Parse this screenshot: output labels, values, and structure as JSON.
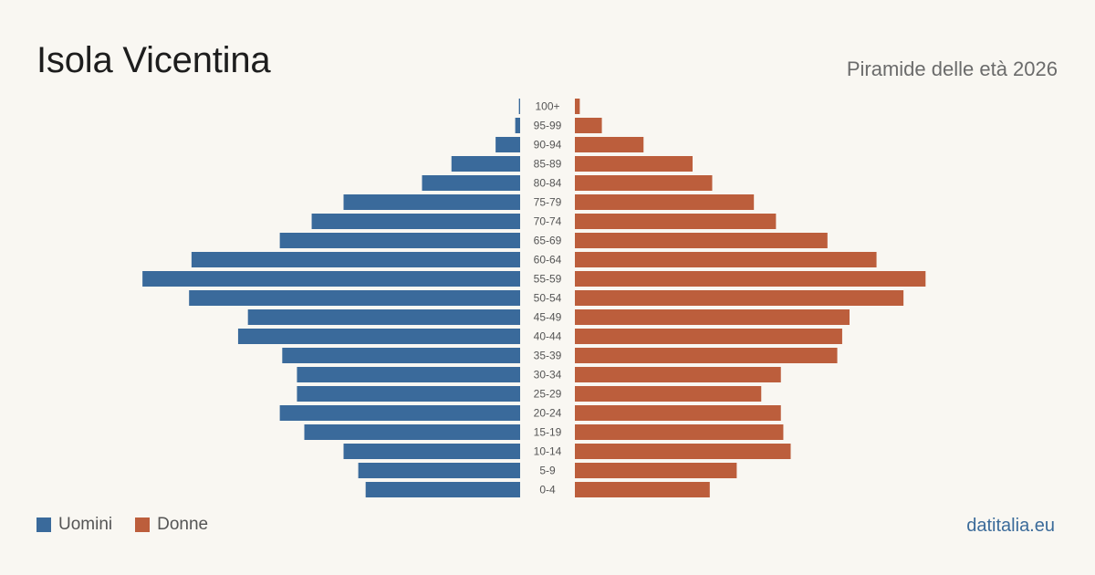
{
  "header": {
    "title": "Isola Vicentina",
    "subtitle": "Piramide delle età 2026"
  },
  "legend": {
    "men_label": "Uomini",
    "women_label": "Donne"
  },
  "footer": {
    "source": "datitalia.eu"
  },
  "colors": {
    "men": "#3a6a9b",
    "women": "#bc5e3c",
    "background": "#f9f7f2"
  },
  "chart_data": {
    "type": "bar",
    "orientation": "horizontal-pyramid",
    "categories": [
      "100+",
      "95-99",
      "90-94",
      "85-89",
      "80-84",
      "75-79",
      "70-74",
      "65-69",
      "60-64",
      "55-59",
      "50-54",
      "45-49",
      "40-44",
      "35-39",
      "30-34",
      "25-29",
      "20-24",
      "15-19",
      "10-14",
      "5-9",
      "0-4"
    ],
    "series": [
      {
        "name": "Uomini",
        "side": "left",
        "values": [
          0.5,
          2,
          10,
          28,
          40,
          72,
          85,
          98,
          134,
          154,
          135,
          111,
          115,
          97,
          91,
          91,
          98,
          88,
          72,
          66,
          63
        ]
      },
      {
        "name": "Donne",
        "side": "right",
        "values": [
          2,
          11,
          28,
          48,
          56,
          73,
          82,
          103,
          123,
          143,
          134,
          112,
          109,
          107,
          84,
          76,
          84,
          85,
          88,
          66,
          55
        ]
      }
    ],
    "x_max": 160,
    "axis_labels_visible": false,
    "grid": false,
    "legend_position": "bottom-left"
  }
}
